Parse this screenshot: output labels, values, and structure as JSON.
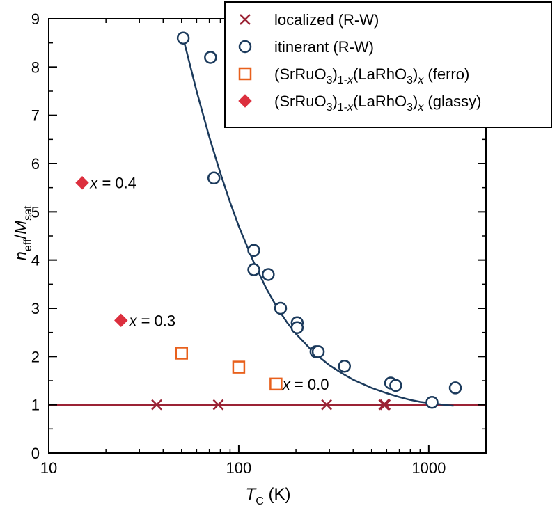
{
  "chart_data": {
    "type": "scatter",
    "title": "",
    "xlabel": {
      "main": "T",
      "sub": "C",
      "unit": " (K)"
    },
    "ylabel": {
      "n": "n",
      "n_sub": "eff",
      "slash": "/",
      "m": "M",
      "m_sub": "sat"
    },
    "xscale": "log",
    "xlim": [
      10,
      2000
    ],
    "ylim": [
      0,
      9
    ],
    "xticks": [
      10,
      100,
      1000
    ],
    "xtick_labels": [
      "10",
      "100",
      "1000"
    ],
    "yticks": [
      0,
      1,
      2,
      3,
      4,
      5,
      6,
      7,
      8,
      9
    ],
    "ytick_labels": [
      "0",
      "1",
      "2",
      "3",
      "4",
      "5",
      "6",
      "7",
      "8",
      "9"
    ],
    "legend_position": "top-right",
    "series": [
      {
        "name": "localized (R-W)",
        "legend": {
          "parts": [
            {
              "t": "localized (R-W)"
            }
          ]
        },
        "marker": "x",
        "color": "#9b2335",
        "points": [
          [
            37,
            1.0
          ],
          [
            78,
            1.0
          ],
          [
            290,
            1.0
          ],
          [
            580,
            1.0
          ],
          [
            590,
            1.0
          ]
        ]
      },
      {
        "name": "itinerant (R-W)",
        "legend": {
          "parts": [
            {
              "t": "itinerant (R-W)"
            }
          ]
        },
        "marker": "circle",
        "color": "#1b3a5c",
        "points": [
          [
            51,
            8.6
          ],
          [
            71,
            8.2
          ],
          [
            74,
            5.7
          ],
          [
            120,
            4.2
          ],
          [
            120,
            3.8
          ],
          [
            143,
            3.7
          ],
          [
            166,
            3.0
          ],
          [
            203,
            2.7
          ],
          [
            203,
            2.6
          ],
          [
            255,
            2.1
          ],
          [
            262,
            2.1
          ],
          [
            360,
            1.8
          ],
          [
            630,
            1.45
          ],
          [
            670,
            1.4
          ],
          [
            1040,
            1.05
          ],
          [
            1380,
            1.35
          ]
        ]
      },
      {
        "name": "(SrRuO3)1-x(LaRhO3)x (ferro)",
        "legend": {
          "parts": [
            {
              "t": "(SrRuO"
            },
            {
              "t": "3",
              "s": "sub"
            },
            {
              "t": ")"
            },
            {
              "t": "1-",
              "s": "sub"
            },
            {
              "t": "x",
              "s": "subi"
            },
            {
              "t": "(LaRhO"
            },
            {
              "t": "3",
              "s": "sub"
            },
            {
              "t": ")"
            },
            {
              "t": "x",
              "s": "subi"
            },
            {
              "t": " (ferro)"
            }
          ]
        },
        "marker": "square",
        "color": "#e8601c",
        "points": [
          [
            50,
            2.07
          ],
          [
            100,
            1.78
          ],
          [
            157,
            1.43
          ]
        ]
      },
      {
        "name": "(SrRuO3)1-x(LaRhO3)x (glassy)",
        "legend": {
          "parts": [
            {
              "t": "(SrRuO"
            },
            {
              "t": "3",
              "s": "sub"
            },
            {
              "t": ")"
            },
            {
              "t": "1-",
              "s": "sub"
            },
            {
              "t": "x",
              "s": "subi"
            },
            {
              "t": "(LaRhO"
            },
            {
              "t": "3",
              "s": "sub"
            },
            {
              "t": ")"
            },
            {
              "t": "x",
              "s": "subi"
            },
            {
              "t": " (glassy)"
            }
          ]
        },
        "marker": "diamond",
        "color": "#dc2f3e",
        "points": [
          [
            15,
            5.6
          ],
          [
            24,
            2.75
          ]
        ]
      }
    ],
    "lines": [
      {
        "name": "localized reference line",
        "color": "#9b2335",
        "points": [
          [
            10,
            1.0
          ],
          [
            2000,
            1.0
          ]
        ]
      },
      {
        "name": "itinerant fit curve",
        "color": "#1b3a5c",
        "points": [
          [
            51,
            8.6
          ],
          [
            60,
            7.5
          ],
          [
            70,
            6.55
          ],
          [
            80,
            5.8
          ],
          [
            90,
            5.2
          ],
          [
            100,
            4.7
          ],
          [
            120,
            3.95
          ],
          [
            140,
            3.4
          ],
          [
            160,
            3.0
          ],
          [
            180,
            2.7
          ],
          [
            200,
            2.47
          ],
          [
            250,
            2.07
          ],
          [
            300,
            1.82
          ],
          [
            350,
            1.65
          ],
          [
            400,
            1.52
          ],
          [
            500,
            1.35
          ],
          [
            600,
            1.24
          ],
          [
            700,
            1.16
          ],
          [
            800,
            1.1
          ],
          [
            900,
            1.06
          ],
          [
            1000,
            1.04
          ],
          [
            1200,
            1.0
          ],
          [
            1350,
            0.98
          ]
        ]
      }
    ],
    "annotations": [
      {
        "text": "x = 0.4",
        "x": 16.5,
        "y": 5.6
      },
      {
        "text": "x = 0.3",
        "x": 26.5,
        "y": 2.75
      },
      {
        "text": "x = 0.0",
        "x": 170,
        "y": 1.43
      }
    ]
  }
}
